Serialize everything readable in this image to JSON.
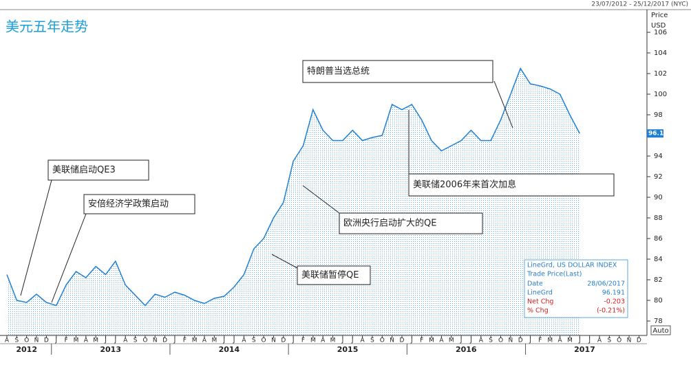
{
  "chart_data": {
    "type": "line",
    "title": "美元五年走势",
    "date_range": "23/07/2012 - 25/12/2017 (NYC)",
    "axis_label": "Price",
    "unit": "USD",
    "scale_button": "Auto",
    "categories": [
      "A",
      "S",
      "O",
      "N",
      "D",
      "J",
      "F",
      "M",
      "A",
      "M",
      "J",
      "J",
      "A",
      "S",
      "O",
      "N",
      "D",
      "J",
      "F",
      "M",
      "A",
      "M",
      "J",
      "J",
      "A",
      "S",
      "O",
      "N",
      "D",
      "J",
      "F",
      "M",
      "A",
      "M",
      "J",
      "J",
      "A",
      "S",
      "O",
      "N",
      "D",
      "J",
      "F",
      "M",
      "A",
      "M",
      "J",
      "J",
      "A",
      "S",
      "O",
      "N",
      "D",
      "J",
      "F",
      "M",
      "A",
      "M",
      "J",
      "J",
      "A",
      "S",
      "O",
      "N",
      "D"
    ],
    "years": [
      "2012",
      "2013",
      "2014",
      "2015",
      "2016",
      "2017"
    ],
    "series": [
      {
        "name": "LineGrd, US DOLLAR INDEX",
        "color": "#1f7fd4",
        "values": [
          82.5,
          80.0,
          79.8,
          80.6,
          79.8,
          79.5,
          81.5,
          82.8,
          82.2,
          83.3,
          82.5,
          83.8,
          81.5,
          80.5,
          79.5,
          80.6,
          80.3,
          80.8,
          80.5,
          80.0,
          79.7,
          80.2,
          80.4,
          81.3,
          82.5,
          85.0,
          86.0,
          88.0,
          89.5,
          93.5,
          95.0,
          98.5,
          96.5,
          95.5,
          95.5,
          96.5,
          95.5,
          95.8,
          96.0,
          99.0,
          98.5,
          99.0,
          97.5,
          95.5,
          94.5,
          95.0,
          95.5,
          96.5,
          95.5,
          95.5,
          97.5,
          100.0,
          102.5,
          101.0,
          100.8,
          100.5,
          100.0,
          98.0,
          96.191,
          null,
          null,
          null,
          null,
          null,
          null
        ]
      }
    ],
    "last_price": 96.191,
    "ylim": [
      76.6,
      108.2
    ],
    "yticks": [
      78,
      80,
      82,
      84,
      86,
      88,
      90,
      92,
      94,
      96,
      98,
      100,
      102,
      104,
      106
    ],
    "annotations": [
      "美联储启动QE3",
      "安倍经济学政策启动",
      "特朗普当选总统",
      "美联储2006年来首次加息",
      "欧洲央行启动扩大的QE",
      "美联储暂停QE"
    ],
    "info_box": {
      "title": "LineGrd, US DOLLAR INDEX",
      "subtitle": "Trade Price(Last)",
      "rows": [
        [
          "Date",
          "28/06/2017"
        ],
        [
          "LineGrd",
          "96.191"
        ],
        [
          "Net Chg",
          "-0.203"
        ],
        [
          "% Chg",
          "(-0.21%)"
        ]
      ]
    }
  }
}
